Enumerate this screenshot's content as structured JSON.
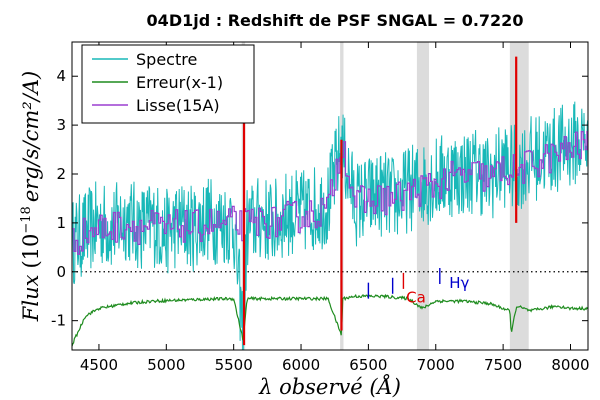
{
  "chart_data": {
    "type": "line",
    "title": "04D1jd : Redshift de PSF SNGAL = 0.7220",
    "xlabel": "λ observé (Å)",
    "ylabel": "Flux (10^-18 erg/s/cm²/A)",
    "ylabel_parts": {
      "word": "Flux",
      "open": "(10",
      "exp": "−18",
      "rest": "erg/s/cm²/A)"
    },
    "xlim": [
      4300,
      8130
    ],
    "ylim": [
      -1.6,
      4.7
    ],
    "xticks": [
      4500,
      5000,
      5500,
      6000,
      6500,
      7000,
      7500,
      8000
    ],
    "yticks": [
      -1,
      0,
      1,
      2,
      3,
      4
    ],
    "grid": false,
    "legend_position": "top-left",
    "colors": {
      "spectre": "#19b8b8",
      "erreur": "#1f8c1f",
      "lisse": "#9b3fd0",
      "line_marker": "#e00000",
      "shade": "#dcdcdc",
      "zero_line": "#000000",
      "ann_blue": "#0000cc",
      "ann_red": "#e00000"
    },
    "shaded_bands": [
      {
        "x0": 5560,
        "x1": 5585
      },
      {
        "x0": 6290,
        "x1": 6315
      },
      {
        "x0": 6860,
        "x1": 6950
      },
      {
        "x0": 7550,
        "x1": 7690
      }
    ],
    "zero_line": {
      "y": 0,
      "style": "dotted"
    },
    "series": [
      {
        "name": "Spectre",
        "color": "#19b8b8",
        "x": [
          4300,
          4400,
          4500,
          4600,
          4700,
          4800,
          4900,
          5000,
          5100,
          5200,
          5300,
          5400,
          5500,
          5570,
          5600,
          5700,
          5800,
          5900,
          6000,
          6100,
          6200,
          6300,
          6400,
          6500,
          6600,
          6700,
          6800,
          6900,
          7000,
          7100,
          7200,
          7300,
          7400,
          7500,
          7600,
          7700,
          7800,
          7900,
          8000,
          8100
        ],
        "y": [
          0.6,
          0.8,
          1.0,
          0.9,
          1.1,
          0.9,
          1.0,
          0.8,
          1.0,
          0.9,
          1.1,
          1.0,
          1.0,
          -1.3,
          0.9,
          1.1,
          1.0,
          1.2,
          1.2,
          1.3,
          1.4,
          2.6,
          1.4,
          1.5,
          1.6,
          1.5,
          1.7,
          1.8,
          1.9,
          2.0,
          2.0,
          2.1,
          1.9,
          2.2,
          2.1,
          2.3,
          2.4,
          2.5,
          2.6,
          2.7
        ],
        "noise_amplitude": 0.9
      },
      {
        "name": "Erreur(x-1)",
        "color": "#1f8c1f",
        "x": [
          4300,
          4400,
          4500,
          4700,
          4900,
          5100,
          5300,
          5500,
          5570,
          5600,
          5800,
          6000,
          6200,
          6300,
          6310,
          6400,
          6600,
          6800,
          6900,
          7000,
          7200,
          7400,
          7500,
          7550,
          7560,
          7600,
          7700,
          7800,
          7900,
          8000,
          8130
        ],
        "y": [
          -1.5,
          -0.9,
          -0.75,
          -0.65,
          -0.6,
          -0.58,
          -0.56,
          -0.55,
          -1.4,
          -0.55,
          -0.55,
          -0.55,
          -0.55,
          -1.3,
          -0.55,
          -0.5,
          -0.5,
          -0.55,
          -0.75,
          -0.6,
          -0.6,
          -0.65,
          -0.75,
          -0.8,
          -1.25,
          -0.7,
          -0.8,
          -0.75,
          -0.7,
          -0.75,
          -0.75
        ]
      },
      {
        "name": "Lisse(15A)",
        "color": "#9b3fd0",
        "x": [
          4300,
          4400,
          4500,
          4600,
          4700,
          4800,
          4900,
          5000,
          5100,
          5200,
          5300,
          5400,
          5500,
          5600,
          5700,
          5800,
          5900,
          6000,
          6100,
          6200,
          6300,
          6400,
          6500,
          6600,
          6700,
          6800,
          6900,
          7000,
          7100,
          7200,
          7300,
          7400,
          7500,
          7600,
          7700,
          7800,
          7900,
          8000,
          8100
        ],
        "y": [
          0.6,
          0.8,
          0.9,
          0.9,
          1.0,
          0.9,
          0.95,
          0.85,
          0.95,
          0.9,
          1.0,
          0.95,
          1.0,
          0.95,
          1.05,
          1.0,
          1.1,
          1.15,
          1.2,
          1.3,
          2.7,
          1.4,
          1.45,
          1.5,
          1.5,
          1.6,
          1.7,
          1.8,
          1.9,
          1.95,
          2.0,
          1.9,
          2.1,
          2.05,
          2.2,
          2.3,
          2.4,
          2.5,
          2.6
        ],
        "noise_amplitude": 0.35
      }
    ],
    "line_markers": [
      {
        "x": 5577,
        "y0": -1.5,
        "y1": 3.4
      },
      {
        "x": 6300,
        "y0": -1.2,
        "y1": 2.7
      },
      {
        "x": 7597,
        "y0": 1.0,
        "y1": 4.4
      }
    ],
    "annotations": [
      {
        "text": "",
        "x": 6500,
        "y": -0.55,
        "color": "#0000cc",
        "tick": true
      },
      {
        "text": "",
        "x": 6680,
        "y": -0.45,
        "color": "#0000cc",
        "tick": true
      },
      {
        "text": "",
        "x": 6760,
        "y": -0.35,
        "color": "#e00000",
        "tick": true
      },
      {
        "text": "Ca",
        "x": 6780,
        "y": -0.55,
        "color": "#e00000",
        "tick": false
      },
      {
        "text": "",
        "x": 7030,
        "y": -0.25,
        "color": "#0000cc",
        "tick": true
      },
      {
        "text": "Hγ",
        "x": 7100,
        "y": -0.25,
        "color": "#0000cc",
        "tick": false
      }
    ]
  }
}
